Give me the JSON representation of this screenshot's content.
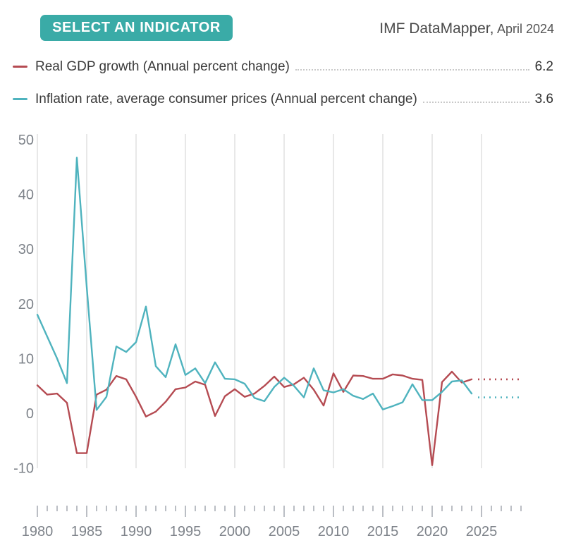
{
  "header": {
    "button_label": "SELECT AN INDICATOR",
    "title_main": "IMF DataMapper,",
    "title_suffix": "April 2024"
  },
  "legend": {
    "rows": [
      {
        "label": "Real GDP growth (Annual percent change)",
        "value": "6.2"
      },
      {
        "label": "Inflation rate, average consumer prices (Annual percent change)",
        "value": "3.6"
      }
    ]
  },
  "colors": {
    "button_teal": "#3aaba7",
    "gdp_line": "#b54b52",
    "inflation_line": "#4fb3be",
    "gridline": "#dcdcdc",
    "axis_tick": "#8d939c",
    "axis_label": "#7e838a"
  },
  "chart_data": {
    "type": "line",
    "title": "IMF DataMapper, April 2024",
    "grid": "vertical",
    "ylim": [
      -10,
      50
    ],
    "yticks": [
      50,
      40,
      30,
      20,
      10,
      0,
      -10
    ],
    "xticks_major": [
      1980,
      1985,
      1990,
      1995,
      2000,
      2005,
      2010,
      2015,
      2020,
      2025
    ],
    "x_minor_start": 1980,
    "x_minor_end": 2029,
    "years": [
      1980,
      1981,
      1982,
      1983,
      1984,
      1985,
      1986,
      1987,
      1988,
      1989,
      1990,
      1991,
      1992,
      1993,
      1994,
      1995,
      1996,
      1997,
      1998,
      1999,
      2000,
      2001,
      2002,
      2003,
      2004,
      2005,
      2006,
      2007,
      2008,
      2009,
      2010,
      2011,
      2012,
      2013,
      2014,
      2015,
      2016,
      2017,
      2018,
      2019,
      2020,
      2021,
      2022,
      2023,
      2024
    ],
    "series": [
      {
        "name": "Real GDP growth (Annual percent change)",
        "color": "#b54b52",
        "latest_value": "6.2",
        "values": [
          5.1,
          3.4,
          3.6,
          1.9,
          -7.3,
          -7.3,
          3.4,
          4.3,
          6.8,
          6.2,
          3.0,
          -0.6,
          0.3,
          2.1,
          4.4,
          4.7,
          5.8,
          5.2,
          -0.5,
          3.1,
          4.4,
          3.0,
          3.6,
          5.0,
          6.7,
          4.8,
          5.3,
          6.5,
          4.3,
          1.4,
          7.3,
          3.9,
          6.9,
          6.8,
          6.3,
          6.3,
          7.1,
          6.9,
          6.3,
          6.1,
          -9.5,
          5.7,
          7.6,
          5.6,
          6.2
        ]
      },
      {
        "name": "Inflation rate, average consumer prices (Annual percent change)",
        "color": "#4fb3be",
        "latest_value": "3.6",
        "values": [
          18.0,
          14.0,
          10.0,
          5.5,
          46.7,
          23.1,
          0.6,
          3.0,
          12.2,
          11.2,
          13.0,
          19.5,
          8.6,
          6.6,
          12.6,
          7.0,
          8.2,
          5.5,
          9.3,
          6.3,
          6.2,
          5.4,
          2.8,
          2.2,
          4.8,
          6.5,
          5.0,
          2.9,
          8.2,
          4.2,
          3.8,
          4.4,
          3.2,
          2.6,
          3.6,
          0.7,
          1.3,
          2.0,
          5.3,
          2.4,
          2.4,
          3.9,
          5.8,
          6.0,
          3.6
        ]
      }
    ],
    "projections": [
      {
        "series": "Real GDP growth (Annual percent change)",
        "year_start": 2025,
        "year_end": 2029,
        "value": 6.2
      },
      {
        "series": "Inflation rate, average consumer prices (Annual percent change)",
        "year_start": 2025,
        "year_end": 2029,
        "value": 2.9
      }
    ]
  }
}
